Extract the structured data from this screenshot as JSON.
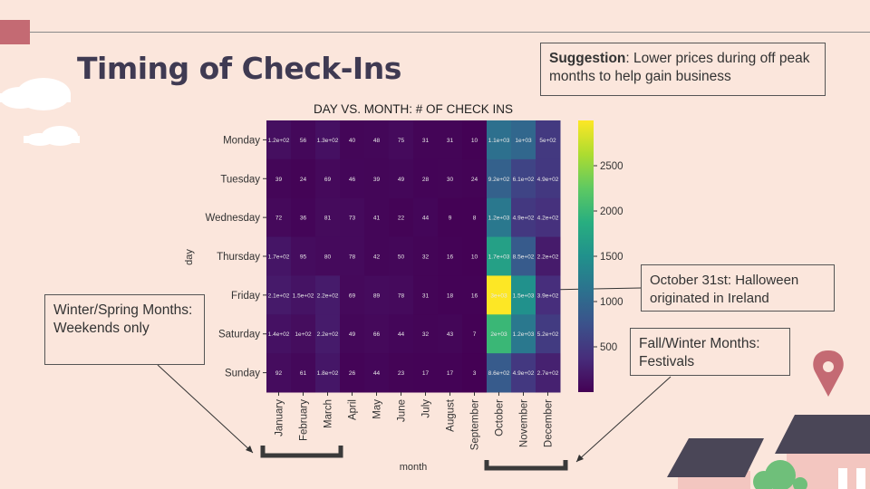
{
  "slide": {
    "title": "Timing of Check-Ins",
    "suggestion_bold": "Suggestion",
    "suggestion_text": ": Lower prices during off peak months to help gain business",
    "halloween_note": "October 31st: Halloween originated in Ireland",
    "winter_note": "Winter/Spring Months: Weekends only",
    "fall_note": "Fall/Winter Months: Festivals"
  },
  "chart_data": {
    "type": "heatmap",
    "title": "DAY VS. MONTH: # OF CHECK INS",
    "xlabel": "month",
    "ylabel": "day",
    "x": [
      "January",
      "February",
      "March",
      "April",
      "May",
      "June",
      "July",
      "August",
      "September",
      "October",
      "November",
      "December"
    ],
    "y": [
      "Monday",
      "Tuesday",
      "Wednesday",
      "Thursday",
      "Friday",
      "Saturday",
      "Sunday"
    ],
    "values": [
      [
        120,
        56,
        130,
        40,
        48,
        75,
        31,
        31,
        10,
        1100,
        1000,
        500
      ],
      [
        39,
        24,
        69,
        46,
        39,
        49,
        28,
        30,
        24,
        920,
        610,
        490
      ],
      [
        72,
        36,
        81,
        73,
        41,
        22,
        44,
        9,
        8,
        1200,
        490,
        420
      ],
      [
        170,
        95,
        80,
        78,
        42,
        50,
        32,
        16,
        10,
        1700,
        850,
        220
      ],
      [
        210,
        150,
        220,
        69,
        89,
        78,
        31,
        18,
        16,
        3000,
        1500,
        390
      ],
      [
        140,
        100,
        220,
        49,
        66,
        44,
        32,
        43,
        7,
        2000,
        1200,
        520
      ],
      [
        92,
        61,
        180,
        26,
        44,
        23,
        17,
        17,
        3,
        860,
        490,
        270
      ]
    ],
    "annotations": [
      [
        "1.2e+02",
        "56",
        "1.3e+02",
        "40",
        "48",
        "75",
        "31",
        "31",
        "10",
        "1.1e+03",
        "1e+03",
        "5e+02"
      ],
      [
        "39",
        "24",
        "69",
        "46",
        "39",
        "49",
        "28",
        "30",
        "24",
        "9.2e+02",
        "6.1e+02",
        "4.9e+02"
      ],
      [
        "72",
        "36",
        "81",
        "73",
        "41",
        "22",
        "44",
        "9",
        "8",
        "1.2e+03",
        "4.9e+02",
        "4.2e+02"
      ],
      [
        "1.7e+02",
        "95",
        "80",
        "78",
        "42",
        "50",
        "32",
        "16",
        "10",
        "1.7e+03",
        "8.5e+02",
        "2.2e+02"
      ],
      [
        "2.1e+02",
        "1.5e+02",
        "2.2e+02",
        "69",
        "89",
        "78",
        "31",
        "18",
        "16",
        "3e+03",
        "1.5e+03",
        "3.9e+02"
      ],
      [
        "1.4e+02",
        "1e+02",
        "2.2e+02",
        "49",
        "66",
        "44",
        "32",
        "43",
        "7",
        "2e+03",
        "1.2e+03",
        "5.2e+02"
      ],
      [
        "92",
        "61",
        "1.8e+02",
        "26",
        "44",
        "23",
        "17",
        "17",
        "3",
        "8.6e+02",
        "4.9e+02",
        "2.7e+02"
      ]
    ],
    "colorbar": {
      "range": [
        0,
        3000
      ],
      "ticks": [
        500,
        1000,
        1500,
        2000,
        2500
      ],
      "colormap": "viridis"
    }
  }
}
